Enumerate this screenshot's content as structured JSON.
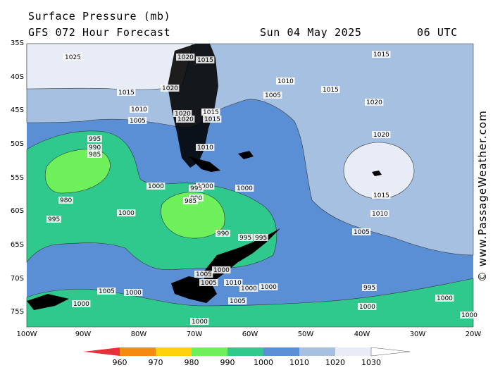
{
  "header": {
    "title": "Surface Pressure (mb)",
    "subtitle": "GFS 072 Hour Forecast",
    "date": "Sun 04 May 2025",
    "time": "06 UTC"
  },
  "credit": "© www.PassageWeather.com",
  "axes": {
    "lat_labels": [
      "35S",
      "40S",
      "45S",
      "50S",
      "55S",
      "60S",
      "65S",
      "70S",
      "75S"
    ],
    "lon_labels": [
      "100W",
      "90W",
      "80W",
      "70W",
      "60W",
      "50W",
      "40W",
      "30W",
      "20W"
    ]
  },
  "legend": {
    "ticks": [
      "960",
      "970",
      "980",
      "990",
      "1000",
      "1010",
      "1020",
      "1030"
    ],
    "colors": [
      "#e8303a",
      "#f58a0e",
      "#ffd30a",
      "#6ef05a",
      "#2fc98e",
      "#5a8fd6",
      "#a6c0e2",
      "#e8ecf6",
      "#ffffff"
    ]
  },
  "colors": {
    "band_990_1000": "#2fc98e",
    "band_980_990": "#6ef05a",
    "band_1000_1010": "#5a8fd6",
    "band_1010_1020": "#a6c0e2",
    "band_1020_1030": "#e8ecf6",
    "land": "#000000"
  },
  "contour_labels": [
    {
      "text": "1025"
    },
    {
      "text": "1020"
    },
    {
      "text": "1015"
    },
    {
      "text": "1020"
    },
    {
      "text": "1015"
    },
    {
      "text": "1010"
    },
    {
      "text": "1005"
    },
    {
      "text": "1015"
    },
    {
      "text": "1015"
    },
    {
      "text": "1010"
    },
    {
      "text": "1020"
    },
    {
      "text": "1020"
    },
    {
      "text": "1015"
    },
    {
      "text": "1010"
    },
    {
      "text": "1005"
    },
    {
      "text": "1010"
    },
    {
      "text": "1015"
    },
    {
      "text": "1015"
    },
    {
      "text": "1020"
    },
    {
      "text": "1020"
    },
    {
      "text": "1015"
    },
    {
      "text": "1010"
    },
    {
      "text": "1005"
    },
    {
      "text": "1000"
    },
    {
      "text": "995"
    },
    {
      "text": "990"
    },
    {
      "text": "985"
    },
    {
      "text": "980"
    },
    {
      "text": "995"
    },
    {
      "text": "1000"
    },
    {
      "text": "1000"
    },
    {
      "text": "995"
    },
    {
      "text": "990"
    },
    {
      "text": "985"
    },
    {
      "text": "990"
    },
    {
      "text": "995"
    },
    {
      "text": "995"
    },
    {
      "text": "1000"
    },
    {
      "text": "1005"
    },
    {
      "text": "1005"
    },
    {
      "text": "1000"
    },
    {
      "text": "1010"
    },
    {
      "text": "1000"
    },
    {
      "text": "1000"
    },
    {
      "text": "1005"
    },
    {
      "text": "1005"
    },
    {
      "text": "1000"
    },
    {
      "text": "1000"
    },
    {
      "text": "995"
    },
    {
      "text": "1000"
    },
    {
      "text": "1000"
    },
    {
      "text": "1000"
    },
    {
      "text": "1000"
    }
  ]
}
